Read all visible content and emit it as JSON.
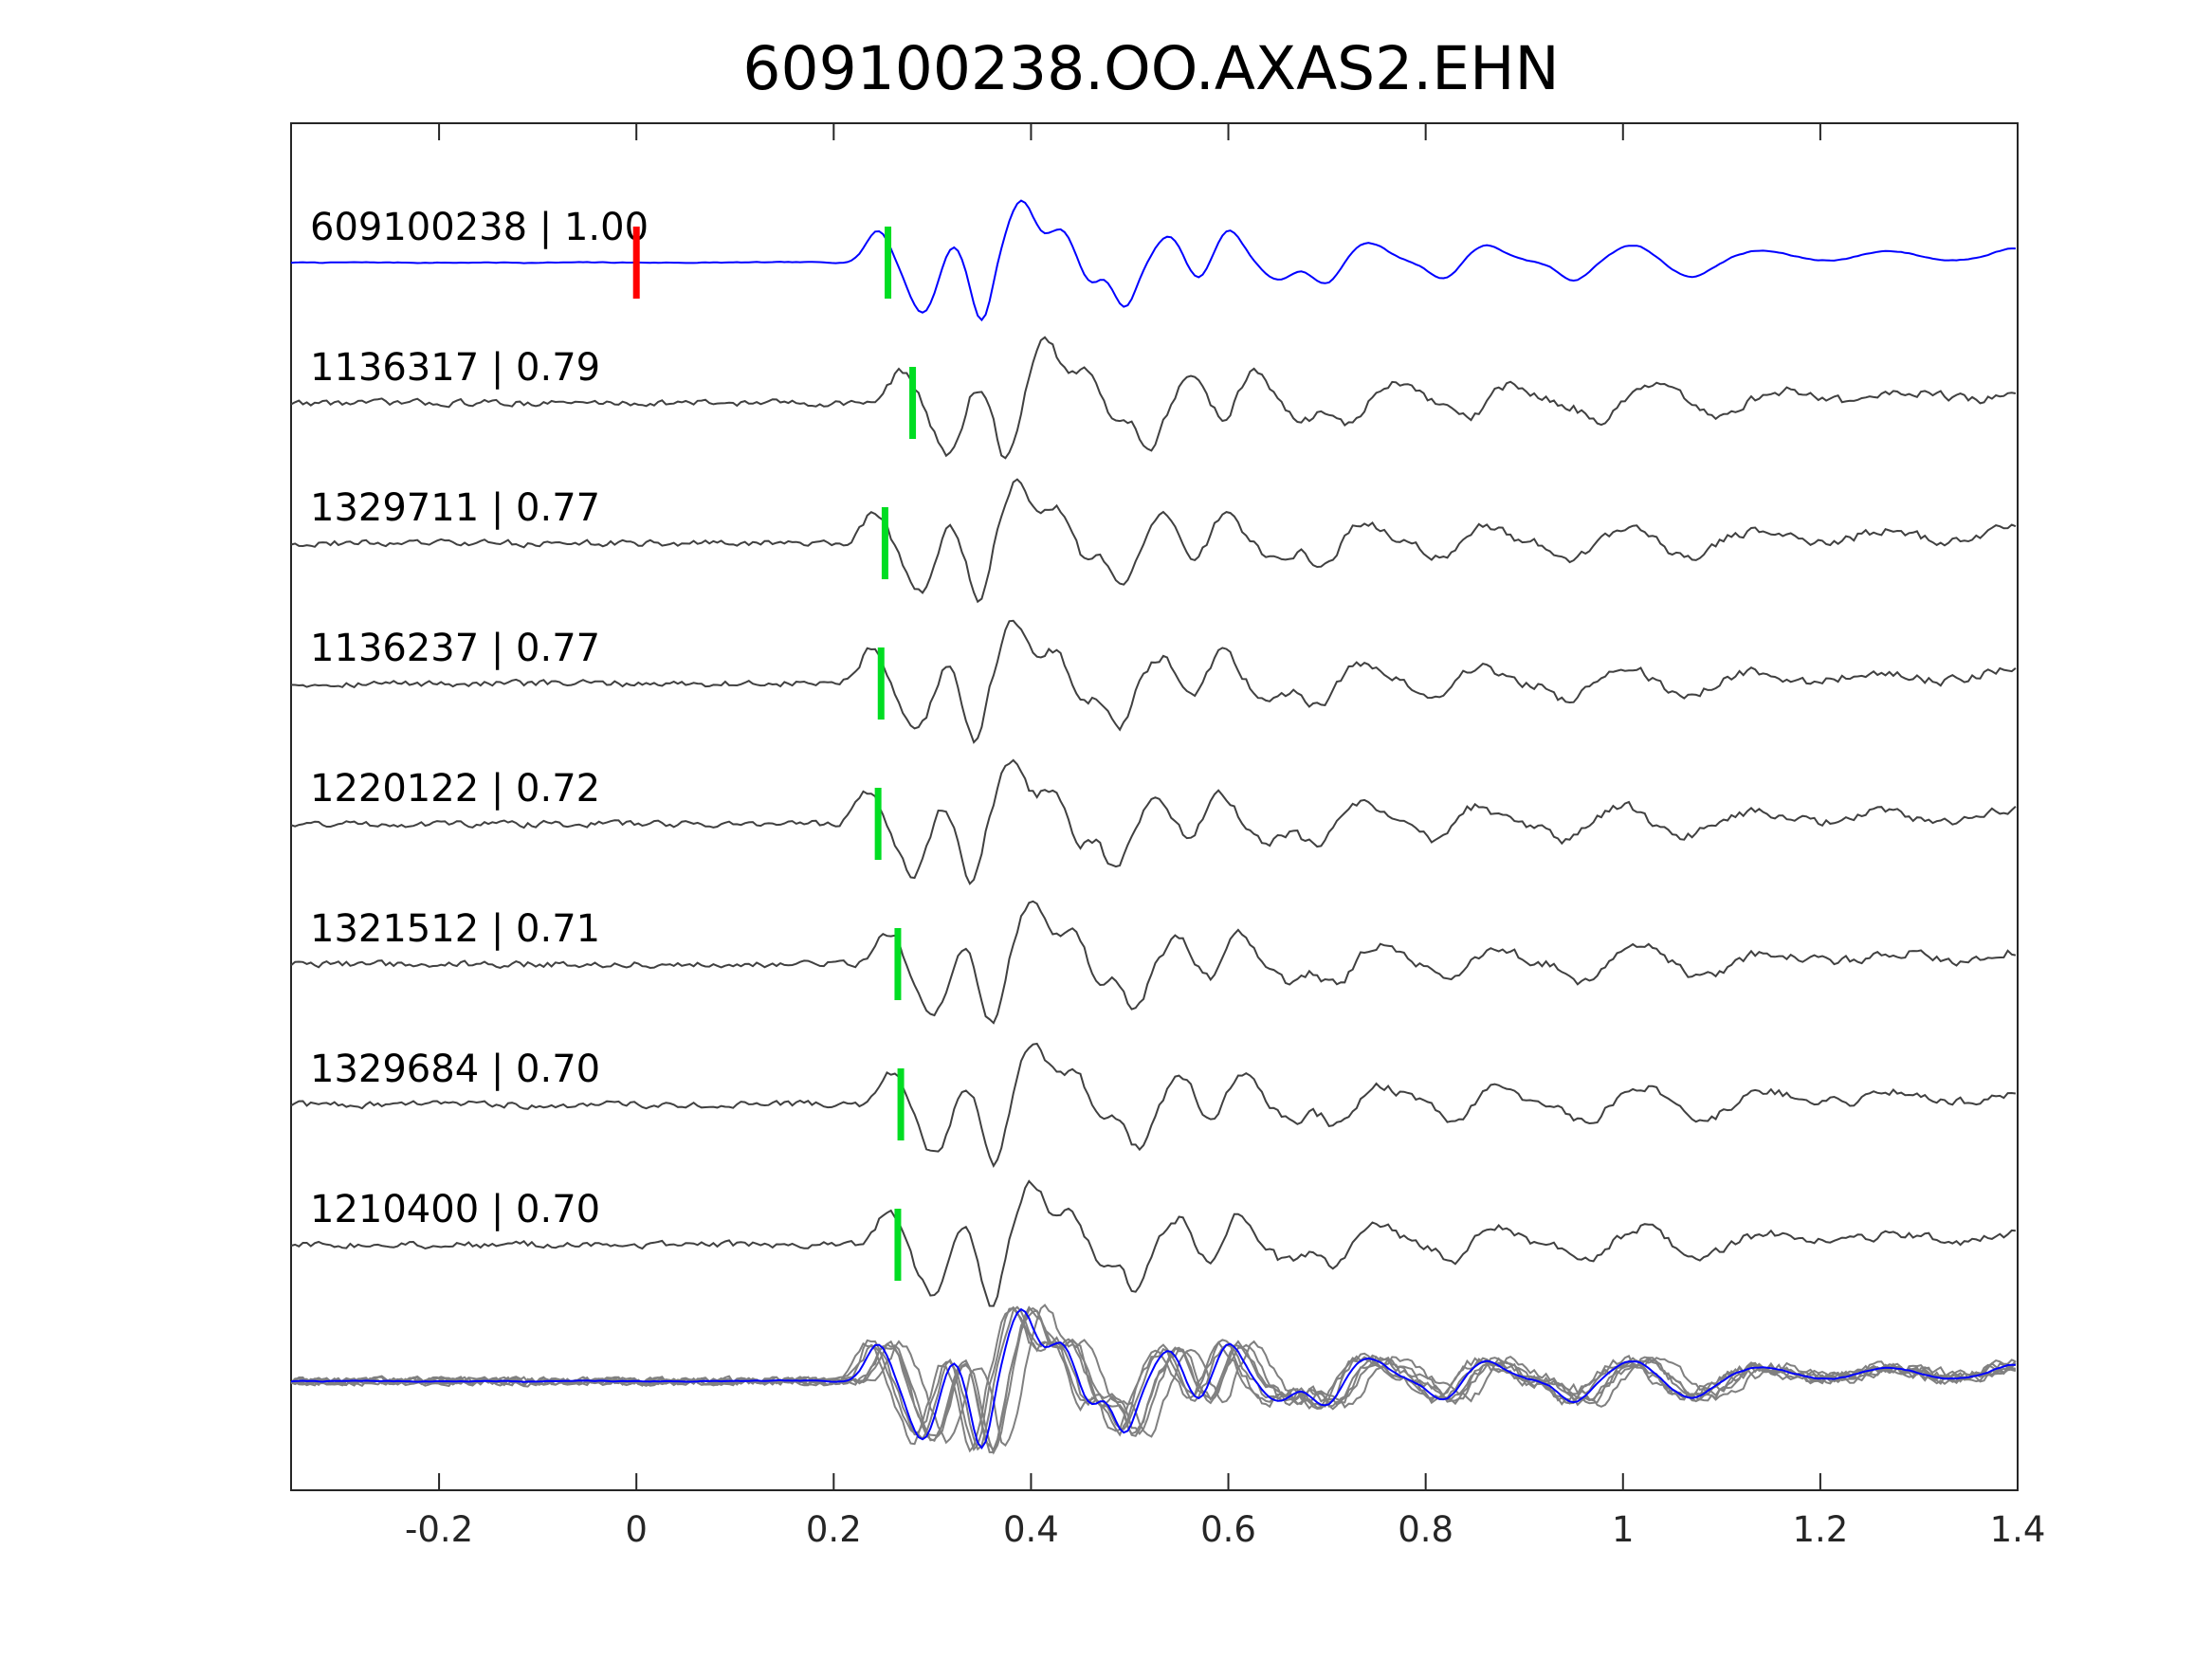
{
  "chart_data": {
    "type": "line",
    "title": "609100238.OO.AXAS2.EHN",
    "xlabel": "",
    "ylabel": "",
    "xlim": [
      -0.35,
      1.4
    ],
    "xticks": [
      -0.2,
      0,
      0.2,
      0.4,
      0.6,
      0.8,
      1,
      1.2,
      1.4
    ],
    "xtick_labels": [
      "-0.2",
      "0",
      "0.2",
      "0.4",
      "0.6",
      "0.8",
      "1",
      "1.2",
      "1.4"
    ],
    "grid": false,
    "legend": "none",
    "colors": {
      "master_trace": "#0000ff",
      "matched_trace": "#404040",
      "overlay_trace": "#808080",
      "reference_pick": "#ff0000",
      "phase_pick": "#00dd22",
      "axes": "#262626"
    },
    "reference_pick_time": 0.0,
    "overlay": "all traces superposed at bottom",
    "traces": [
      {
        "id": "609100238",
        "cc": "1.00",
        "label": "609100238 | 1.00",
        "pick": 0.255,
        "master": true
      },
      {
        "id": "1136317",
        "cc": "0.79",
        "label": "1136317 | 0.79",
        "pick": 0.28,
        "master": false
      },
      {
        "id": "1329711",
        "cc": "0.77",
        "label": "1329711 | 0.77",
        "pick": 0.252,
        "master": false
      },
      {
        "id": "1136237",
        "cc": "0.77",
        "label": "1136237 | 0.77",
        "pick": 0.248,
        "master": false
      },
      {
        "id": "1220122",
        "cc": "0.72",
        "label": "1220122 | 0.72",
        "pick": 0.245,
        "master": false
      },
      {
        "id": "1321512",
        "cc": "0.71",
        "label": "1321512 | 0.71",
        "pick": 0.265,
        "master": false
      },
      {
        "id": "1329684",
        "cc": "0.70",
        "label": "1329684 | 0.70",
        "pick": 0.268,
        "master": false
      },
      {
        "id": "1210400",
        "cc": "0.70",
        "label": "1210400 | 0.70",
        "pick": 0.265,
        "master": false
      }
    ]
  }
}
